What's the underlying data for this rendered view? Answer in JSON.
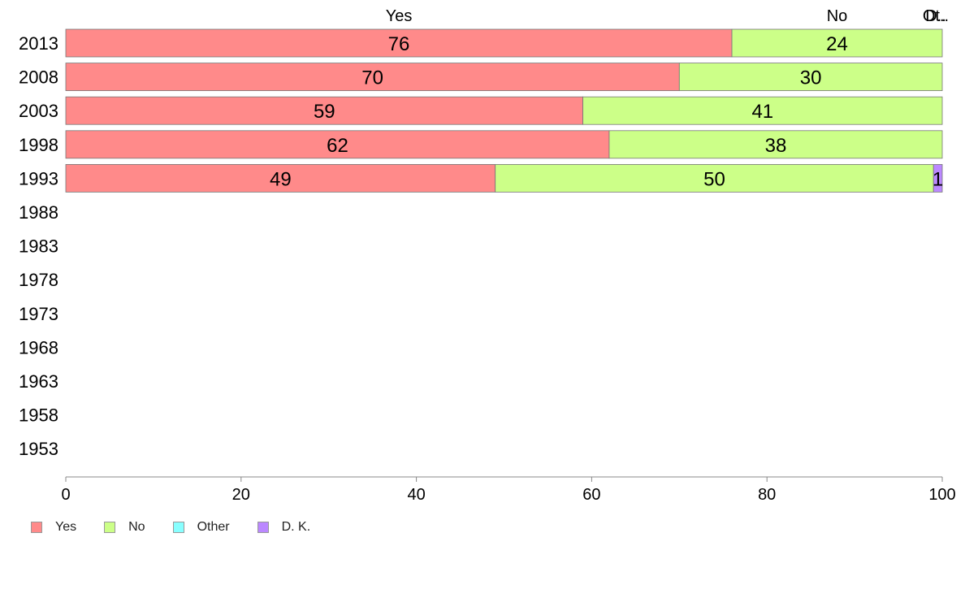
{
  "chart_data": {
    "type": "bar",
    "orientation": "horizontal",
    "stacked": true,
    "categories": [
      "2013",
      "2008",
      "2003",
      "1998",
      "1993",
      "1988",
      "1983",
      "1978",
      "1973",
      "1968",
      "1963",
      "1958",
      "1953"
    ],
    "series": [
      {
        "name": "Yes",
        "color": "#ff8a8a",
        "values": [
          76,
          70,
          59,
          62,
          49,
          null,
          null,
          null,
          null,
          null,
          null,
          null,
          null
        ]
      },
      {
        "name": "No",
        "color": "#ccff88",
        "values": [
          24,
          30,
          41,
          38,
          50,
          null,
          null,
          null,
          null,
          null,
          null,
          null,
          null
        ]
      },
      {
        "name": "Other",
        "color": "#88ffff",
        "values": [
          0,
          0,
          0,
          0,
          0,
          null,
          null,
          null,
          null,
          null,
          null,
          null,
          null
        ]
      },
      {
        "name": "D. K.",
        "color": "#bb88ff",
        "values": [
          0,
          0,
          0,
          0,
          1,
          null,
          null,
          null,
          null,
          null,
          null,
          null,
          null
        ]
      }
    ],
    "top_labels": [
      "Yes",
      "No",
      "Ot..",
      "D.."
    ],
    "xlim": [
      0,
      100
    ],
    "xticks": [
      0,
      20,
      40,
      60,
      80,
      100
    ],
    "grid": false,
    "legend_position": "bottom-left",
    "title": "",
    "xlabel": "",
    "ylabel": ""
  }
}
